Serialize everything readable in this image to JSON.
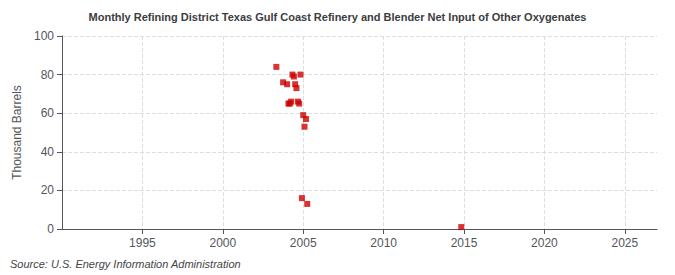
{
  "chart_data": {
    "type": "scatter",
    "title": "Monthly Refining District Texas Gulf Coast Refinery and Blender Net Input of Other Oxygenates",
    "ylabel": "Thousand Barrels",
    "annotation": "Source: U.S. Energy Information Administration",
    "x": [
      2003.33,
      2003.75,
      2004.0,
      2004.08,
      2004.17,
      2004.25,
      2004.33,
      2004.42,
      2004.5,
      2004.58,
      2004.67,
      2004.75,
      2004.83,
      2004.92,
      2005.0,
      2005.08,
      2005.17,
      2005.25,
      2014.83
    ],
    "values": [
      84,
      76,
      75,
      65,
      65,
      66,
      80,
      79,
      75,
      73,
      66,
      65,
      80,
      16,
      59,
      53,
      57,
      13,
      1
    ],
    "color": "#cc0000",
    "marker": "square",
    "xlim": [
      1990,
      2027
    ],
    "xticks": [
      1995,
      2000,
      2005,
      2010,
      2015,
      2020,
      2025
    ],
    "ylim": [
      0,
      100
    ],
    "yticks": [
      0,
      20,
      40,
      60,
      80,
      100
    ],
    "grid": true
  }
}
